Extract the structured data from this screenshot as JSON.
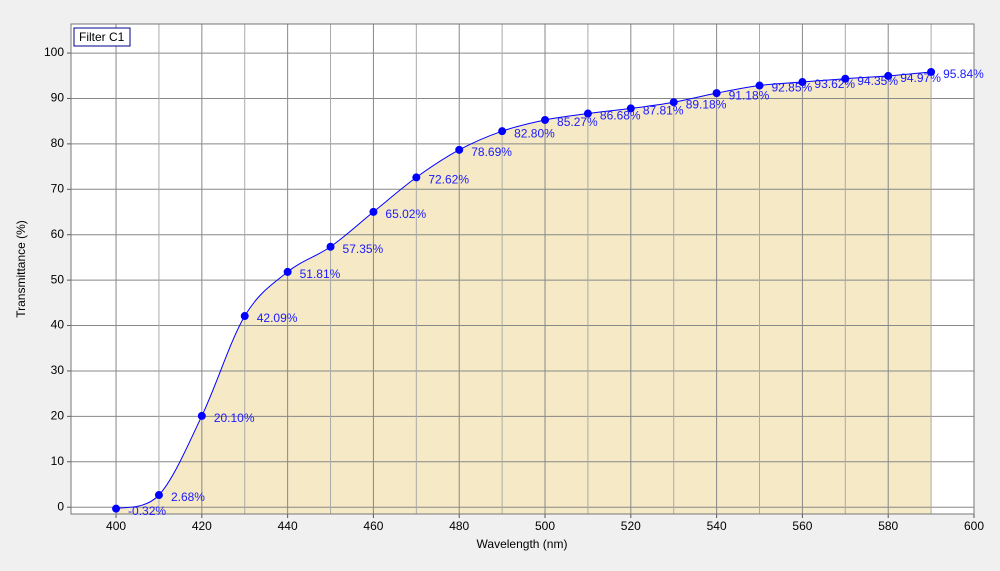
{
  "chart_data": {
    "type": "area",
    "x_label": "Wavelength (nm)",
    "y_label": "Transmittance (%)",
    "x": [
      400,
      410,
      420,
      430,
      440,
      450,
      460,
      470,
      480,
      490,
      500,
      510,
      520,
      530,
      540,
      550,
      560,
      570,
      580,
      590
    ],
    "series": [
      {
        "name": "Filter C1",
        "color": "#0000ff",
        "fill": "#f5e9c6",
        "values": [
          -0.32,
          2.68,
          20.1,
          42.09,
          51.81,
          57.35,
          65.02,
          72.62,
          78.69,
          82.8,
          85.27,
          86.68,
          87.81,
          89.18,
          91.18,
          92.85,
          93.62,
          94.35,
          94.97,
          95.84
        ],
        "value_labels": [
          "-0.32%",
          "2.68%",
          "20.10%",
          "42.09%",
          "51.81%",
          "57.35%",
          "65.02%",
          "72.62%",
          "78.69%",
          "82.80%",
          "85.27%",
          "86.68%",
          "87.81%",
          "89.18%",
          "91.18%",
          "92.85%",
          "93.62%",
          "94.35%",
          "94.97%",
          "95.84%"
        ]
      }
    ],
    "xlim": [
      389.5,
      600
    ],
    "xticks": [
      400,
      420,
      440,
      460,
      480,
      500,
      520,
      540,
      560,
      580,
      600
    ],
    "ylim": [
      -1.5,
      106.4
    ],
    "yticks": [
      0,
      10,
      20,
      30,
      40,
      50,
      60,
      70,
      80,
      90,
      100
    ],
    "grid": true,
    "legend": "top-left"
  }
}
